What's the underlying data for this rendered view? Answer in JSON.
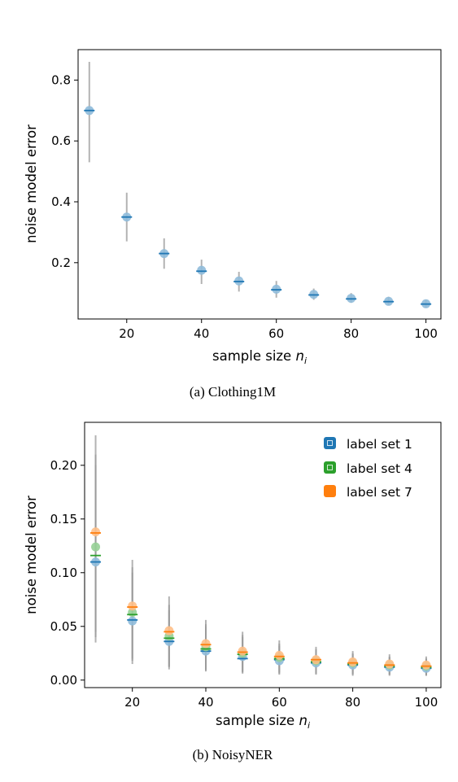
{
  "chart_data": [
    {
      "type": "scatter",
      "caption": "(a) Clothing1M",
      "xlabel": "sample size n_i",
      "xlabel_main": "sample size ",
      "xlabel_var": "n",
      "xlabel_sub": "i",
      "ylabel": "noise model error",
      "xlim": [
        7,
        104
      ],
      "ylim": [
        0.015,
        0.9
      ],
      "xticks": [
        20,
        40,
        60,
        80,
        100
      ],
      "yticks": [
        0.2,
        0.4,
        0.6,
        0.8
      ],
      "ytick_labels": [
        "0.2",
        "0.4",
        "0.6",
        "0.8"
      ],
      "legend": "none",
      "series": [
        {
          "color": "#1f77b4",
          "x": [
            10,
            20,
            30,
            40,
            50,
            60,
            70,
            80,
            90,
            100
          ],
          "mean": [
            0.7,
            0.35,
            0.23,
            0.175,
            0.14,
            0.113,
            0.096,
            0.083,
            0.073,
            0.065
          ],
          "median": [
            0.7,
            0.35,
            0.23,
            0.172,
            0.138,
            0.111,
            0.094,
            0.081,
            0.072,
            0.064
          ],
          "low": [
            0.53,
            0.27,
            0.18,
            0.13,
            0.105,
            0.085,
            0.078,
            0.068,
            0.06,
            0.052
          ],
          "high": [
            0.86,
            0.43,
            0.28,
            0.21,
            0.17,
            0.14,
            0.115,
            0.1,
            0.088,
            0.078
          ]
        }
      ]
    },
    {
      "type": "scatter",
      "caption": "(b) NoisyNER",
      "xlabel": "sample size n_i",
      "xlabel_main": "sample size ",
      "xlabel_var": "n",
      "xlabel_sub": "i",
      "ylabel": "noise model error",
      "xlim": [
        7,
        104
      ],
      "ylim": [
        -0.007,
        0.24
      ],
      "xticks": [
        20,
        40,
        60,
        80,
        100
      ],
      "yticks": [
        0.0,
        0.05,
        0.1,
        0.15,
        0.2
      ],
      "ytick_labels": [
        "0.00",
        "0.05",
        "0.10",
        "0.15",
        "0.20"
      ],
      "legend": "top-right",
      "series": [
        {
          "name": "label set 1",
          "color": "#1f77b4",
          "x": [
            10,
            20,
            30,
            40,
            50,
            60,
            70,
            80,
            90,
            100
          ],
          "mean": [
            0.11,
            0.055,
            0.036,
            0.027,
            0.022,
            0.018,
            0.016,
            0.014,
            0.012,
            0.011
          ],
          "median": [
            0.11,
            0.056,
            0.036,
            0.027,
            0.02,
            0.019,
            0.016,
            0.014,
            0.012,
            0.011
          ],
          "low": [
            0.035,
            0.015,
            0.01,
            0.008,
            0.006,
            0.005,
            0.005,
            0.004,
            0.004,
            0.004
          ],
          "high": [
            0.2,
            0.1,
            0.065,
            0.05,
            0.04,
            0.032,
            0.028,
            0.024,
            0.021,
            0.02
          ]
        },
        {
          "name": "label set 4",
          "color": "#2ca02c",
          "x": [
            10,
            20,
            30,
            40,
            50,
            60,
            70,
            80,
            90,
            100
          ],
          "mean": [
            0.124,
            0.063,
            0.041,
            0.031,
            0.025,
            0.021,
            0.018,
            0.016,
            0.014,
            0.013
          ],
          "median": [
            0.116,
            0.061,
            0.039,
            0.029,
            0.024,
            0.02,
            0.017,
            0.015,
            0.013,
            0.012
          ],
          "low": [
            0.04,
            0.018,
            0.012,
            0.009,
            0.007,
            0.006,
            0.006,
            0.005,
            0.005,
            0.004
          ],
          "high": [
            0.21,
            0.105,
            0.07,
            0.052,
            0.042,
            0.034,
            0.029,
            0.025,
            0.022,
            0.02
          ]
        },
        {
          "name": "label set 7",
          "color": "#ff7f0e",
          "x": [
            10,
            20,
            30,
            40,
            50,
            60,
            70,
            80,
            90,
            100
          ],
          "mean": [
            0.138,
            0.069,
            0.046,
            0.034,
            0.027,
            0.023,
            0.019,
            0.017,
            0.015,
            0.014
          ],
          "median": [
            0.137,
            0.068,
            0.045,
            0.033,
            0.026,
            0.022,
            0.019,
            0.016,
            0.014,
            0.013
          ],
          "low": [
            0.045,
            0.02,
            0.013,
            0.01,
            0.008,
            0.007,
            0.006,
            0.006,
            0.005,
            0.005
          ],
          "high": [
            0.228,
            0.112,
            0.078,
            0.056,
            0.045,
            0.037,
            0.031,
            0.027,
            0.024,
            0.022
          ]
        }
      ]
    }
  ]
}
